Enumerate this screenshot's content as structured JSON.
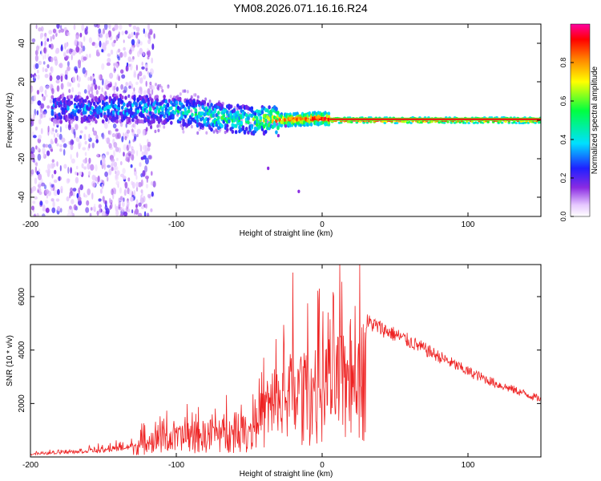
{
  "title": "YM08.2026.071.16.16.R24",
  "chart_data": [
    {
      "type": "heatmap",
      "name": "spectrogram",
      "xlabel": "Height of straight line (km)",
      "ylabel": "Frequency (Hz)",
      "xlim": [
        -200,
        150
      ],
      "ylim": [
        -50,
        50
      ],
      "xticks": [
        -200,
        -100,
        0,
        100
      ],
      "yticks": [
        -40,
        -20,
        0,
        20,
        40
      ],
      "colorbar": {
        "label": "Normalized spectral amplitude",
        "range": [
          0.0,
          1.0
        ],
        "ticks": [
          0.0,
          0.2,
          0.4,
          0.6,
          0.8
        ]
      },
      "ridge": {
        "description_points": [
          {
            "x": -170,
            "freq": 6,
            "amp": 0.35
          },
          {
            "x": -125,
            "freq": 6,
            "amp": 0.45
          },
          {
            "x": -100,
            "freq": 5,
            "amp": 0.5
          },
          {
            "x": -75,
            "freq": 2,
            "amp": 0.6
          },
          {
            "x": -50,
            "freq": 0,
            "amp": 0.55
          },
          {
            "x": -30,
            "freq": 0,
            "amp": 0.85
          },
          {
            "x": 0,
            "freq": 1,
            "amp": 0.95
          },
          {
            "x": 10,
            "freq": 0,
            "amp": 1.0
          },
          {
            "x": 150,
            "freq": 0,
            "amp": 1.0
          }
        ]
      }
    },
    {
      "type": "line",
      "name": "snr",
      "xlabel": "Height of straight line (km)",
      "ylabel": "SNR (10 * v/v)",
      "xlim": [
        -200,
        150
      ],
      "ylim": [
        0,
        7200
      ],
      "xticks": [
        -200,
        -100,
        0,
        100
      ],
      "yticks": [
        2000,
        4000,
        6000
      ],
      "color": "#ee2222",
      "envelope": [
        {
          "x": -200,
          "y": 120
        },
        {
          "x": -170,
          "y": 250
        },
        {
          "x": -150,
          "y": 300
        },
        {
          "x": -130,
          "y": 500
        },
        {
          "x": -110,
          "y": 1100
        },
        {
          "x": -90,
          "y": 1200
        },
        {
          "x": -70,
          "y": 1400
        },
        {
          "x": -50,
          "y": 1600
        },
        {
          "x": -40,
          "y": 2500
        },
        {
          "x": -30,
          "y": 3200
        },
        {
          "x": -20,
          "y": 3700
        },
        {
          "x": -10,
          "y": 3900
        },
        {
          "x": 0,
          "y": 4300
        },
        {
          "x": 10,
          "y": 4700
        },
        {
          "x": 20,
          "y": 5100
        },
        {
          "x": 30,
          "y": 5400
        },
        {
          "x": 45,
          "y": 5000
        },
        {
          "x": 60,
          "y": 4600
        },
        {
          "x": 80,
          "y": 4000
        },
        {
          "x": 100,
          "y": 3400
        },
        {
          "x": 120,
          "y": 2900
        },
        {
          "x": 140,
          "y": 2500
        },
        {
          "x": 150,
          "y": 2300
        }
      ],
      "peaks": [
        {
          "x": -20,
          "y": 6900
        },
        {
          "x": 12,
          "y": 7200
        },
        {
          "x": -2,
          "y": 6300
        }
      ]
    }
  ]
}
